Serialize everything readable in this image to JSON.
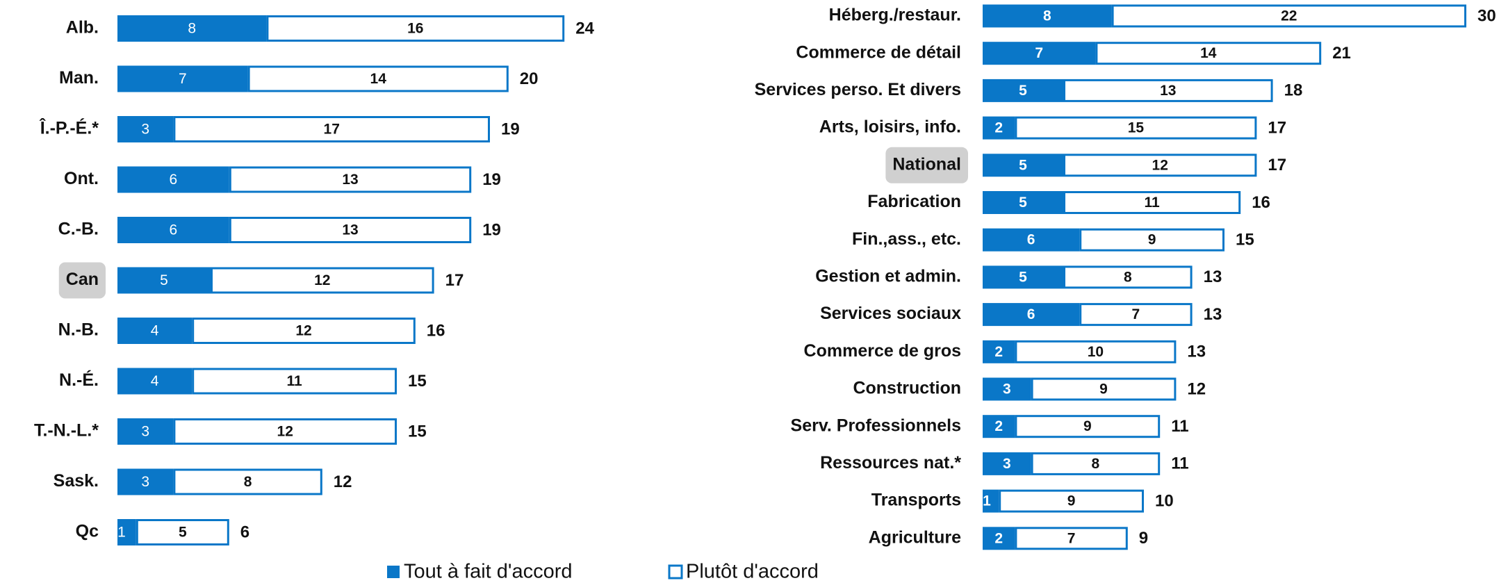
{
  "chart_data": [
    {
      "type": "bar",
      "orientation": "horizontal",
      "stacked": true,
      "highlight": "Can",
      "border": "#0a77c8",
      "categories": [
        "Alb.",
        "Man.",
        "Î.-P.-É.*",
        "Ont.",
        "C.-B.",
        "Can",
        "N.-B.",
        "N.-É.",
        "T.-N.-L.*",
        "Sask.",
        "Qc"
      ],
      "series": [
        {
          "name": "Tout à fait d'accord",
          "color": "#0a77c8",
          "values": [
            8,
            7,
            3,
            6,
            6,
            5,
            4,
            4,
            3,
            3,
            1
          ]
        },
        {
          "name": "Plutôt d'accord",
          "color": "#ffffff",
          "values": [
            16,
            14,
            17,
            13,
            13,
            12,
            12,
            11,
            12,
            8,
            5
          ]
        }
      ],
      "totals": [
        24,
        20,
        19,
        19,
        19,
        17,
        16,
        15,
        15,
        12,
        6
      ]
    },
    {
      "type": "bar",
      "orientation": "horizontal",
      "stacked": true,
      "highlight": "National",
      "border": "#0a77c8",
      "categories": [
        "Héberg./restaur.",
        "Commerce de détail",
        "Services perso. Et divers",
        "Arts, loisirs, info.",
        "National",
        "Fabrication",
        "Fin.,ass., etc.",
        "Gestion et admin.",
        "Services sociaux",
        "Commerce de gros",
        "Construction",
        "Serv. Professionnels",
        "Ressources nat.*",
        "Transports",
        "Agriculture"
      ],
      "series": [
        {
          "color": "#0a77c8",
          "values": [
            8,
            7,
            5,
            2,
            5,
            5,
            6,
            5,
            6,
            2,
            3,
            2,
            3,
            1,
            2
          ]
        },
        {
          "color": "#ffffff",
          "values": [
            22,
            14,
            13,
            15,
            12,
            11,
            9,
            8,
            7,
            10,
            9,
            9,
            8,
            9,
            7
          ]
        }
      ],
      "totals": [
        30,
        21,
        18,
        17,
        17,
        16,
        15,
        13,
        13,
        13,
        12,
        11,
        11,
        10,
        9
      ]
    }
  ]
}
